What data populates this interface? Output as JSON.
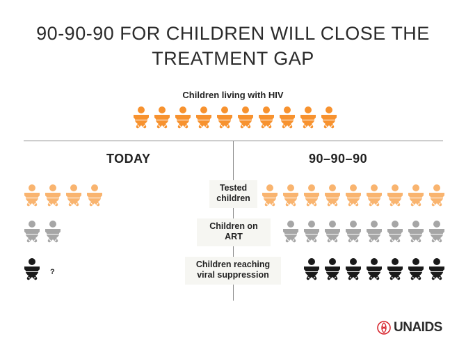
{
  "title_line1": "90-90-90 FOR CHILDREN WILL CLOSE THE",
  "title_line2": "TREATMENT GAP",
  "top_label": "Children living with HIV",
  "left_heading": "TODAY",
  "right_heading": "90–90–90",
  "rows": [
    {
      "label_line1": "Tested",
      "label_line2": "children",
      "today_count": 4,
      "target_count": 9
    },
    {
      "label_line1": "Children on",
      "label_line2": "ART",
      "today_count": 2,
      "target_count": 8
    },
    {
      "label_line1": "Children reaching",
      "label_line2": "viral suppression",
      "today_count": 1,
      "target_count": 7
    }
  ],
  "top_count": 10,
  "unknown_marker": "?",
  "logo_text": "UNAIDS",
  "colors": {
    "orange": "#F7922F",
    "light_orange": "#F9B46F",
    "gray": "#A6A6A6",
    "black": "#1A1A1A",
    "logo_red": "#D7262E"
  }
}
